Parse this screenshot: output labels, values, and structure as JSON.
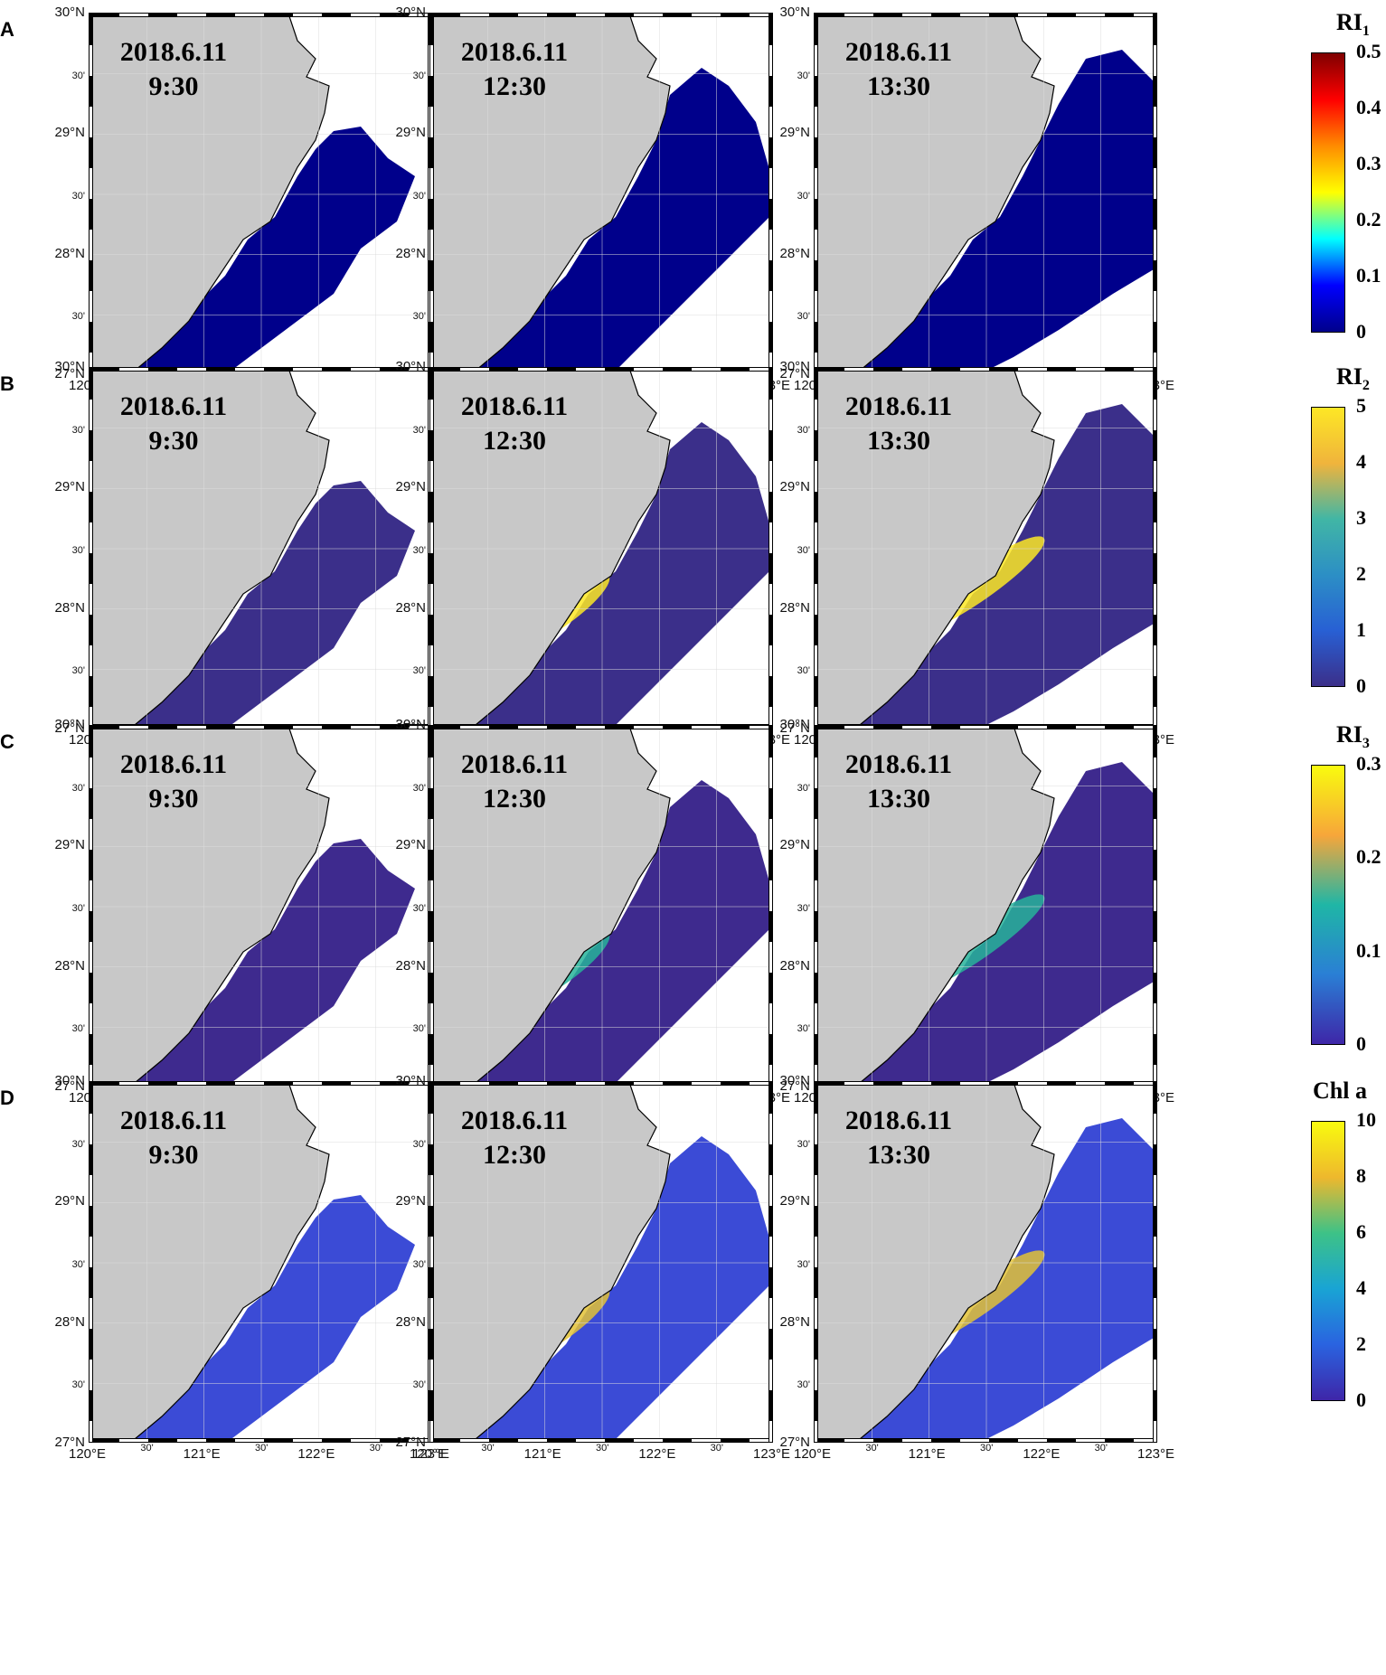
{
  "rows": [
    {
      "label": "A",
      "colorbar": {
        "title": "RI",
        "subscript": "1",
        "ticks": [
          "0.5",
          "0.4",
          "0.3",
          "0.2",
          "0.1",
          "0"
        ],
        "colors": [
          "#7f0000",
          "#ff0000",
          "#ff8c00",
          "#ffff00",
          "#00ffff",
          "#0000ff",
          "#00008b"
        ]
      }
    },
    {
      "label": "B",
      "colorbar": {
        "title": "RI",
        "subscript": "2",
        "ticks": [
          "5",
          "4",
          "3",
          "2",
          "1",
          "0"
        ],
        "colors": [
          "#fde725",
          "#f0b43c",
          "#41b6a5",
          "#2c8fc5",
          "#2860d4",
          "#3b2f8a"
        ]
      }
    },
    {
      "label": "C",
      "colorbar": {
        "title": "RI",
        "subscript": "3",
        "ticks": [
          "0.3",
          "0.2",
          "0.1",
          "0"
        ],
        "colors": [
          "#f9fb0e",
          "#f7a63a",
          "#1fb6a6",
          "#2a7fd5",
          "#3e26a8"
        ]
      }
    },
    {
      "label": "D",
      "colorbar": {
        "title": "Chl a",
        "subscript": "",
        "ticks": [
          "10",
          "8",
          "6",
          "4",
          "2",
          "0"
        ],
        "colors": [
          "#f9fb0e",
          "#eeb82d",
          "#3dc287",
          "#19a4d4",
          "#2a63e0",
          "#3e26a8"
        ]
      }
    }
  ],
  "panels": [
    {
      "date": "2018.6.11",
      "time": "9:30"
    },
    {
      "date": "2018.6.11",
      "time": "12:30"
    },
    {
      "date": "2018.6.11",
      "time": "13:30"
    }
  ],
  "lat_labels": [
    "30°N",
    "30'",
    "29°N",
    "30'",
    "28°N",
    "30'",
    "27°N"
  ],
  "lon_labels": [
    "120°E",
    "30'",
    "121°E",
    "30'",
    "122°E",
    "30'",
    "123°E"
  ],
  "colors": {
    "land": "#c8c8c8",
    "ocean_cloud": "#ffffff"
  }
}
